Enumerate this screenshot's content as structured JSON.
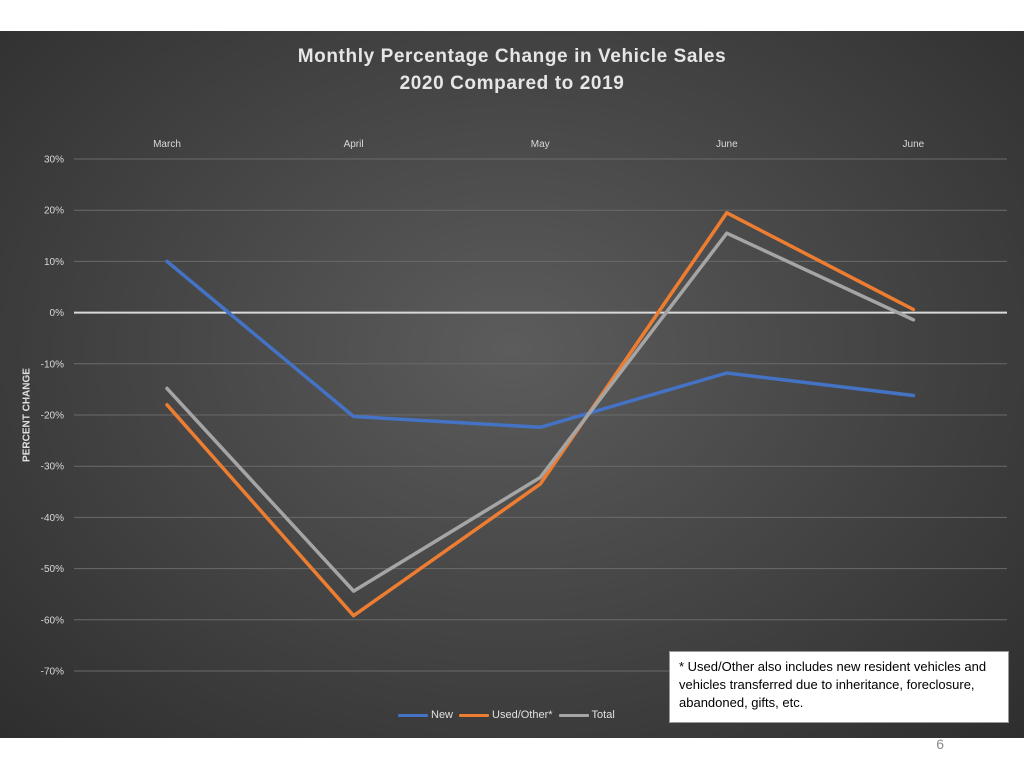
{
  "chart_data": {
    "type": "line",
    "title_lines": [
      "Monthly Percentage Change in Vehicle Sales",
      "2020 Compared to 2019"
    ],
    "xlabel": "",
    "ylabel": "PERCENT CHANGE",
    "categories": [
      "March",
      "April",
      "May",
      "June",
      "June"
    ],
    "ylim": [
      -70,
      30
    ],
    "yticks": [
      30,
      20,
      10,
      0,
      -10,
      -20,
      -30,
      -40,
      -50,
      -60,
      -70
    ],
    "ytick_labels": [
      "30%",
      "20%",
      "10%",
      "0%",
      "-10%",
      "-20%",
      "-30%",
      "-40%",
      "-50%",
      "-60%",
      "-70%"
    ],
    "x_axis_position": "top",
    "grid": true,
    "legend_position": "bottom",
    "series": [
      {
        "name": "New",
        "color": "#4472c4",
        "values": [
          10,
          -20.3,
          -22.4,
          -11.8,
          -16.2
        ]
      },
      {
        "name": "Used/Other*",
        "color": "#ed7d31",
        "values": [
          -18,
          -59.2,
          -33.5,
          19.5,
          0.6
        ]
      },
      {
        "name": "Total",
        "color": "#a5a5a5",
        "values": [
          -14.8,
          -54.4,
          -32.2,
          15.5,
          -1.4
        ]
      }
    ],
    "annotation": "* Used/Other also includes new resident vehicles and vehicles transferred due to inheritance, foreclosure, abandoned, gifts, etc."
  },
  "page_number": "6"
}
